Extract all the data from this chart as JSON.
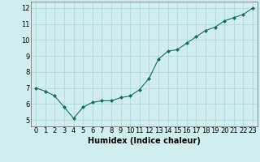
{
  "x": [
    0,
    1,
    2,
    3,
    4,
    5,
    6,
    7,
    8,
    9,
    10,
    11,
    12,
    13,
    14,
    15,
    16,
    17,
    18,
    19,
    20,
    21,
    22,
    23
  ],
  "y": [
    7.0,
    6.8,
    6.5,
    5.8,
    5.1,
    5.8,
    6.1,
    6.2,
    6.2,
    6.4,
    6.5,
    6.9,
    7.6,
    8.8,
    9.3,
    9.4,
    9.8,
    10.2,
    10.6,
    10.8,
    11.2,
    11.4,
    11.6,
    12.0
  ],
  "xlabel": "Humidex (Indice chaleur)",
  "xlim": [
    -0.5,
    23.5
  ],
  "ylim": [
    4.6,
    12.4
  ],
  "yticks": [
    5,
    6,
    7,
    8,
    9,
    10,
    11,
    12
  ],
  "xticks": [
    0,
    1,
    2,
    3,
    4,
    5,
    6,
    7,
    8,
    9,
    10,
    11,
    12,
    13,
    14,
    15,
    16,
    17,
    18,
    19,
    20,
    21,
    22,
    23
  ],
  "line_color": "#1a6b5a",
  "marker_color": "#1a6b5a",
  "bg_color": "#d0eeee",
  "grid_color": "#add8d8",
  "xlabel_fontsize": 7,
  "tick_fontsize": 6,
  "marker_size": 2.0,
  "line_width": 0.8
}
